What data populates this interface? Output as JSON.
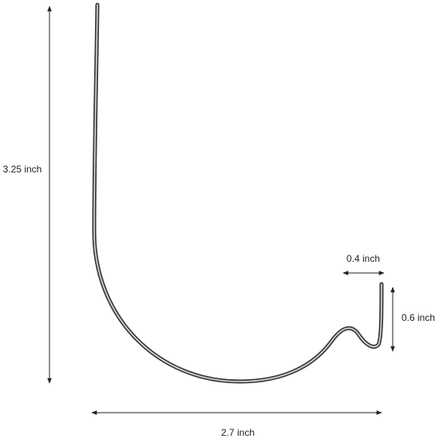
{
  "dimensions": {
    "height": "3.25 inch",
    "width": "2.7 inch",
    "tip_width": "0.4 inch",
    "tip_height": "0.6 inch"
  }
}
